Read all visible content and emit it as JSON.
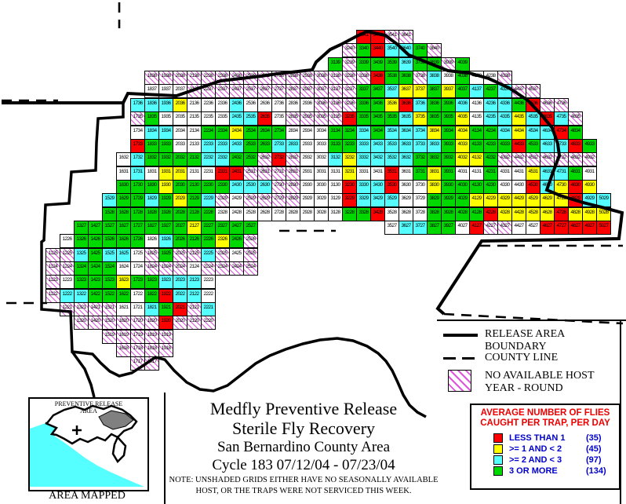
{
  "title_block": {
    "line1": "Medfly Preventive Release",
    "line2": "Sterile Fly Recovery",
    "line3": "San Bernardino County Area",
    "line4": "Cycle 183    07/12/04 - 07/23/04",
    "note1": "NOTE: UNSHADED GRIDS EITHER HAVE NO SEASONALLY AVAILABLE",
    "note2": "HOST, OR THE TRAPS WERE NOT SERVICED THIS WEEK."
  },
  "map_legend": {
    "boundary_label": "RELEASE AREA BOUNDARY",
    "county_label": "COUNTY LINE",
    "host_label_line1": "NO AVAILABLE HOST",
    "host_label_line2": "YEAR - ROUND"
  },
  "flies_legend": {
    "title_line1": "AVERAGE NUMBER OF FLIES",
    "title_line2": "CAUGHT PER TRAP, PER DAY",
    "items": [
      {
        "color_key": "red",
        "label": "LESS THAN 1",
        "count": "(35)"
      },
      {
        "color_key": "yellow",
        "label": ">= 1 AND < 2",
        "count": "(45)"
      },
      {
        "color_key": "cyan",
        "label": ">= 2 AND < 3",
        "count": "(97)"
      },
      {
        "color_key": "green",
        "label": "3 OR MORE",
        "count": "(134)"
      }
    ]
  },
  "inset": {
    "label_line1": "PREVENTIVE RELEASE",
    "label_line2": "AREA",
    "caption": "AREA MAPPED"
  },
  "colors": {
    "red": "#ff0000",
    "yellow": "#ffff00",
    "cyan": "#55ffff",
    "green": "#00d800",
    "hatch_line": "#dd55dd",
    "legend_text": "#0000cc",
    "legend_title": "#ee0000"
  },
  "chart_data": {
    "type": "heatmap",
    "note": "Trap grid; cell label = column(11-50) + row(17-41). Codes: R red <1 fly, Y >=1&<2, C cyan >=2&<3, G green 3+, W white unshaded, H no-host hatched, . absent",
    "rows": [
      {
        "row": 41,
        "start": 33,
        "cells": "RRHH"
      },
      {
        "row": 40,
        "start": 32,
        "cells": "HGRCCGH"
      },
      {
        "row": 39,
        "start": 31,
        "cells": "GHGGGCGGHG"
      },
      {
        "row": 38,
        "start": 18,
        "cells": "HHHHHHHHHHHHHHHHRGGHCWGWWH"
      },
      {
        "row": 37,
        "start": 18,
        "cells": "WWWHHHHHHHHHHHHGGCYYGYGCGCHH"
      },
      {
        "row": 36,
        "start": 17,
        "cells": "CCCYWWWCWWWWWHHHGGYRCGGCWCCGRHH"
      },
      {
        "row": 35,
        "start": 17,
        "cells": "HGWWWWWCCRWHHHHRGGGCYGGYWCCYCRCH"
      },
      {
        "row": 34,
        "start": 17,
        "cells": "WCCWWGGYGGGWWWGGCGCCCYGYGGCYCCRG"
      },
      {
        "row": 33,
        "start": 17,
        "cells": "RGGWWCCCGGCCWWGGCCCCCCGYGGGRGCCRG"
      },
      {
        "row": 32,
        "start": 16,
        "cells": "WCGGGGCCGGHRHWWCYCCCCGGGYYGHHHHHHH"
      },
      {
        "row": 31,
        "start": 16,
        "cells": "WCWYYWWRRHHHHWWWYWWRWGYGWWGWWYCCGW"
      },
      {
        "row": 30,
        "start": 16,
        "cells": "GGGYGGGGCCCHHWWWRCCRWWYGGGGWWRCYRY"
      },
      {
        "row": 29,
        "start": 15,
        "cells": "CGGCGYGCHWHHHHWWWRCCCWWGGGYYYYYYYRCC"
      },
      {
        "row": 28,
        "start": 15,
        "cells": "GGGGGGGGWWWWWWWWWGGRWWWGGGGRYYYYRYYY"
      },
      {
        "row": 27,
        "start": 13,
        "cells": "GGGGGGGGYGGGG.........WCCGGWRHHWWRRRRR"
      },
      {
        "row": 26,
        "start": 12,
        "cells": "WGGGGGWCGGGYGH"
      },
      {
        "row": 25,
        "start": 11,
        "cells": "HHCGCCWHGHHCHWH"
      },
      {
        "row": 24,
        "start": 11,
        "cells": "HHGGGWWHHHWHHHH"
      },
      {
        "row": 23,
        "start": 11,
        "cells": "HWGGGYGGCCCW"
      },
      {
        "row": 22,
        "start": 11,
        "cells": "HCCGGGWGRCCW"
      },
      {
        "row": 21,
        "start": 12,
        "cells": "HHHHWWCGRHC"
      },
      {
        "row": 20,
        "start": 13,
        "cells": "HHHHHHRHHH"
      },
      {
        "row": 19,
        "start": 15,
        "cells": "HHHHH"
      },
      {
        "row": 18,
        "start": 16,
        "cells": "HHHH"
      },
      {
        "row": 17,
        "start": 17,
        "cells": "HH"
      }
    ]
  }
}
